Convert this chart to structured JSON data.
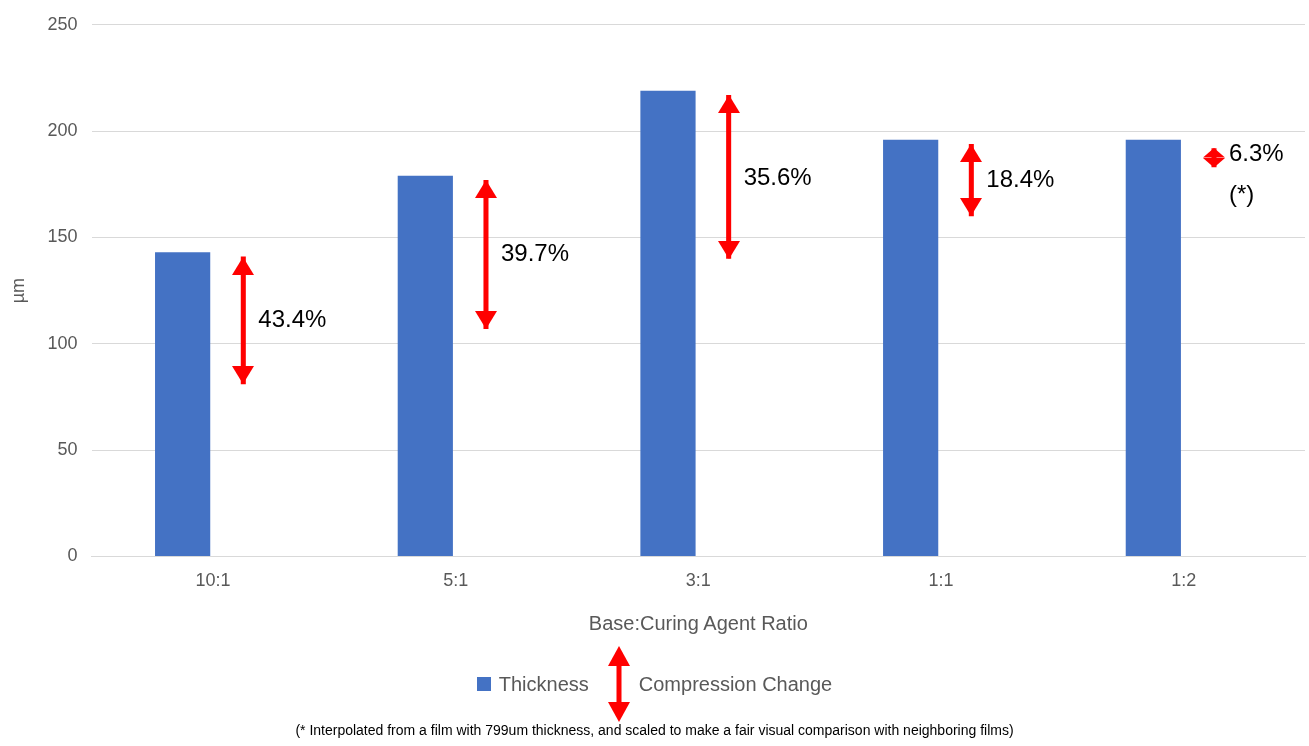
{
  "chart_data": {
    "type": "bar",
    "xlabel": "Base:Curing Agent Ratio",
    "ylabel": "µm",
    "categories": [
      "10:1",
      "5:1",
      "3:1",
      "1:1",
      "1:2"
    ],
    "series": [
      {
        "name": "Thickness",
        "color": "#4472c4",
        "values": [
          143,
          179,
          219,
          196,
          196
        ]
      },
      {
        "name": "Compression Change",
        "color": "#ff0000",
        "base": [
          81,
          107,
          140,
          160,
          183
        ],
        "values": [
          60,
          70,
          77,
          34,
          9
        ]
      }
    ],
    "ylim": [
      0,
      250
    ],
    "yticks": [
      0,
      50,
      100,
      150,
      200,
      250
    ],
    "grid": "y",
    "legend": "bottom",
    "annotations": [
      {
        "text": "43.4%",
        "x": "10:1",
        "y": 111
      },
      {
        "text": "39.7%",
        "x": "5:1",
        "y": 142
      },
      {
        "text": "35.6%",
        "x": "3:1",
        "y": 178
      },
      {
        "text": "18.4%",
        "x": "1:1",
        "y": 177
      },
      {
        "text": "6.3%",
        "x": "1:2",
        "y": 189
      },
      {
        "text": "(*)",
        "x": "1:2",
        "y": 170
      },
      "(* Interpolated from a film with 799um thickness, and scaled to make a fair visual comparison with neighboring films)"
    ]
  }
}
